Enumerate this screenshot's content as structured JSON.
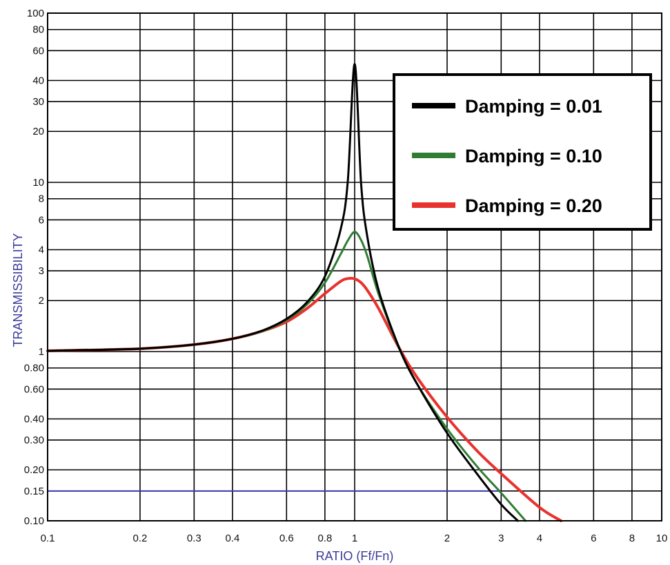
{
  "chart_data": {
    "type": "line",
    "title": "",
    "xlabel": "RATIO (Ff/Fn)",
    "ylabel": "TRANSMISSIBILITY",
    "xscale": "log",
    "yscale": "log",
    "xlim": [
      0.1,
      10
    ],
    "ylim": [
      0.1,
      100
    ],
    "grid": true,
    "legend_position": "top-right",
    "x_tick_labels": [
      "0.1",
      "0.2",
      "0.3",
      "0.4",
      "0.6",
      "0.8",
      "1",
      "2",
      "3",
      "4",
      "6",
      "8",
      "10"
    ],
    "y_tick_labels": [
      "0.10",
      "0.15",
      "0.20",
      "0.30",
      "0.40",
      "0.60",
      "0.80",
      "1",
      "2",
      "3",
      "4",
      "6",
      "8",
      "10",
      "20",
      "30",
      "40",
      "60",
      "80",
      "100"
    ],
    "annotations": [
      {
        "type": "horizontal_line",
        "y": 0.15,
        "x_from": 0.1,
        "x_to": 3.0,
        "color": "#3a3ab0"
      }
    ],
    "series": [
      {
        "name": "Damping = 0.01",
        "color": "#000000",
        "x": [
          0.1,
          0.2,
          0.3,
          0.4,
          0.5,
          0.6,
          0.7,
          0.8,
          0.9,
          0.95,
          1.0,
          1.05,
          1.1,
          1.2,
          1.4,
          1.6,
          2.0,
          2.5,
          3.0,
          3.4
        ],
        "y": [
          1.01,
          1.04,
          1.1,
          1.19,
          1.33,
          1.56,
          1.96,
          2.78,
          5.26,
          10.2,
          50.0,
          9.7,
          4.75,
          2.27,
          1.04,
          0.64,
          0.33,
          0.19,
          0.125,
          0.1
        ]
      },
      {
        "name": "Damping = 0.10",
        "color": "#2f7d32",
        "x": [
          0.1,
          0.2,
          0.3,
          0.4,
          0.5,
          0.6,
          0.7,
          0.8,
          0.9,
          0.95,
          1.0,
          1.05,
          1.1,
          1.2,
          1.4,
          1.6,
          2.0,
          2.5,
          3.0,
          3.6
        ],
        "y": [
          1.01,
          1.04,
          1.1,
          1.19,
          1.32,
          1.54,
          1.9,
          2.55,
          3.76,
          4.53,
          5.1,
          4.55,
          3.65,
          2.15,
          1.03,
          0.64,
          0.35,
          0.21,
          0.146,
          0.1
        ]
      },
      {
        "name": "Damping = 0.20",
        "color": "#e8322e",
        "x": [
          0.1,
          0.2,
          0.3,
          0.4,
          0.5,
          0.6,
          0.7,
          0.8,
          0.9,
          0.95,
          1.0,
          1.05,
          1.1,
          1.2,
          1.4,
          1.6,
          2.0,
          2.5,
          3.0,
          4.0,
          4.7
        ],
        "y": [
          1.01,
          1.04,
          1.1,
          1.19,
          1.32,
          1.5,
          1.8,
          2.2,
          2.6,
          2.7,
          2.69,
          2.55,
          2.3,
          1.78,
          1.04,
          0.7,
          0.41,
          0.26,
          0.19,
          0.12,
          0.1
        ]
      }
    ]
  }
}
